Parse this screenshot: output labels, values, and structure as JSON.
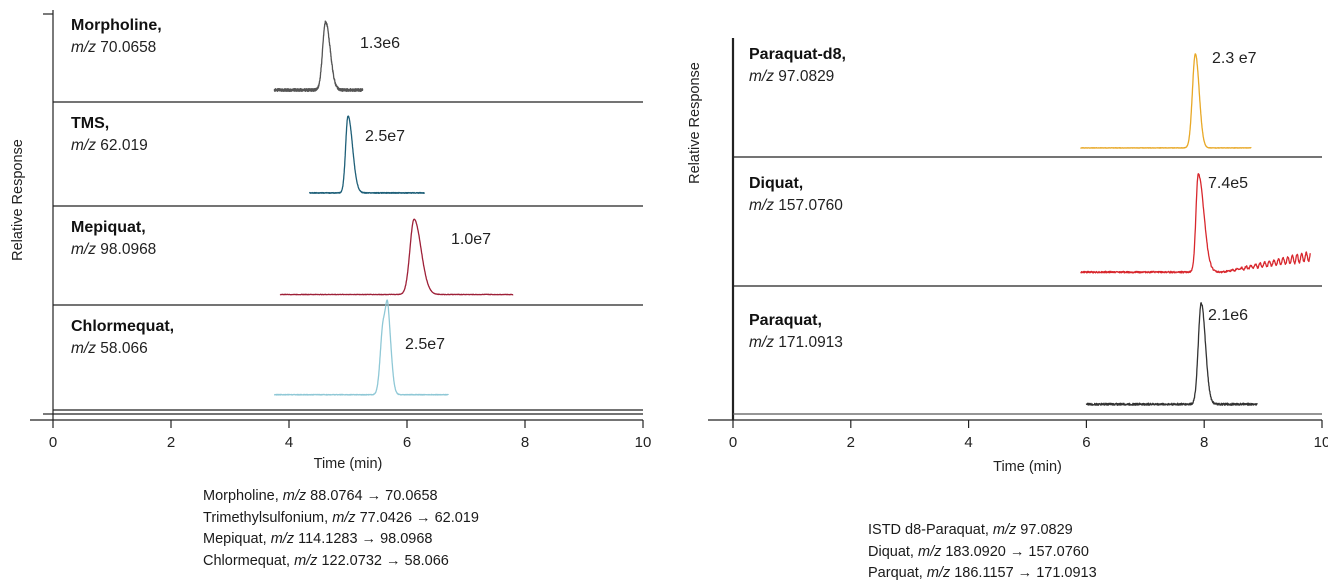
{
  "chart_data": [
    {
      "type": "line",
      "title": "",
      "xlabel": "Time (min)",
      "ylabel": "Relative Response",
      "xlim": [
        0,
        10
      ],
      "x_ticks": [
        "0",
        "2",
        "4",
        "6",
        "8",
        "10"
      ],
      "grid": false,
      "legend": "none",
      "panels": [
        {
          "name": "Morpholine,",
          "mz": "70.0658",
          "peak_label": "1.3e6",
          "color": "#555555",
          "x_range": [
            3.75,
            5.25
          ],
          "baseline": 0.07,
          "noise": 0.02,
          "peaks": [
            {
              "rt": 4.62,
              "height": 1.0,
              "width": 0.05,
              "tail": 0.08
            }
          ]
        },
        {
          "name": "TMS,",
          "mz": "62.019",
          "peak_label": "2.5e7",
          "color": "#1e5f78",
          "x_range": [
            4.35,
            6.3
          ],
          "baseline": 0.04,
          "noise": 0.005,
          "peaks": [
            {
              "rt": 5.0,
              "height": 1.0,
              "width": 0.04,
              "tail": 0.09
            }
          ]
        },
        {
          "name": "Mepiquat,",
          "mz": "98.0968",
          "peak_label": "1.0e7",
          "color": "#9e2038",
          "x_range": [
            3.85,
            7.8
          ],
          "baseline": 0.04,
          "noise": 0.003,
          "peaks": [
            {
              "rt": 6.12,
              "height": 1.0,
              "width": 0.07,
              "tail": 0.13
            }
          ]
        },
        {
          "name": "Chlormequat,",
          "mz": "58.066",
          "peak_label": "2.5e7",
          "color": "#8fc8d6",
          "x_range": [
            3.75,
            6.7
          ],
          "baseline": 0.04,
          "noise": 0.004,
          "peaks": [
            {
              "rt": 5.6,
              "height": 0.95,
              "width": 0.05,
              "tail": 0.05
            },
            {
              "rt": 5.68,
              "height": 0.8,
              "width": 0.035,
              "tail": 0.06
            }
          ]
        }
      ],
      "transitions": [
        {
          "name": "Morpholine,",
          "mz": "88.0764",
          "arrow": "→",
          "product": "70.0658"
        },
        {
          "name": "Trimethylsulfonium,",
          "mz": "77.0426",
          "arrow": "→",
          "product": "62.019"
        },
        {
          "name": "Mepiquat,",
          "mz": "114.1283",
          "arrow": "→",
          "product": "98.0968"
        },
        {
          "name": "Chlormequat,",
          "mz": "122.0732",
          "arrow": "→",
          "product": "58.066"
        }
      ]
    },
    {
      "type": "line",
      "title": "",
      "xlabel": "Time (min)",
      "ylabel": "Relative Response",
      "xlim": [
        0,
        10
      ],
      "x_ticks": [
        "0",
        "2",
        "4",
        "6",
        "8",
        "10"
      ],
      "grid": false,
      "legend": "none",
      "panels": [
        {
          "name": "Paraquat-d8,",
          "mz": "97.0829",
          "peak_label": "2.3 e7",
          "color": "#e8a826",
          "x_range": [
            5.9,
            8.8
          ],
          "baseline": 0.04,
          "noise": 0.002,
          "peaks": [
            {
              "rt": 7.85,
              "height": 1.0,
              "width": 0.05,
              "tail": 0.06
            }
          ]
        },
        {
          "name": "Diquat,",
          "mz": "157.0760",
          "peak_label": "7.4e5",
          "color": "#d8272d",
          "x_range": [
            5.9,
            9.8
          ],
          "baseline": 0.05,
          "noise": 0.008,
          "peaks": [
            {
              "rt": 7.9,
              "height": 1.0,
              "width": 0.04,
              "tail": 0.12
            }
          ],
          "drift": {
            "from": 8.3,
            "to": 9.8,
            "rise": 0.16,
            "wave": 0.05
          }
        },
        {
          "name": "Paraquat,",
          "mz": "171.0913",
          "peak_label": "2.1e6",
          "color": "#333333",
          "x_range": [
            6.0,
            8.9
          ],
          "baseline": 0.04,
          "noise": 0.01,
          "peaks": [
            {
              "rt": 7.95,
              "height": 1.0,
              "width": 0.05,
              "tail": 0.07
            }
          ]
        }
      ],
      "transitions": [
        {
          "name": "ISTD d8-Paraquat,",
          "mz": "97.0829",
          "arrow": "",
          "product": ""
        },
        {
          "name": "Diquat,",
          "mz": "183.0920",
          "arrow": "→",
          "product": "157.0760"
        },
        {
          "name": "Parquat,",
          "mz": "186.1157",
          "arrow": "→",
          "product": "171.0913"
        }
      ]
    }
  ],
  "mz_prefix": "m/z"
}
